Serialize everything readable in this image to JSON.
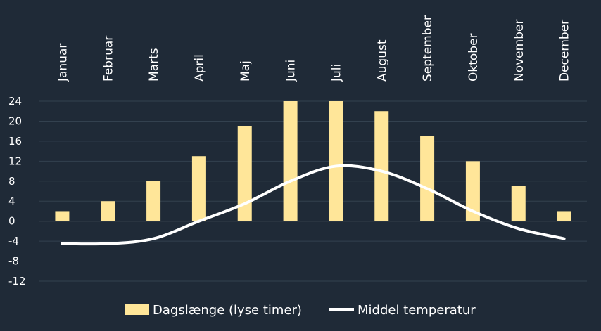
{
  "chart_data": {
    "type": "bar",
    "categories": [
      "Januar",
      "Februar",
      "Marts",
      "April",
      "Maj",
      "Juni",
      "Juli",
      "August",
      "September",
      "Oktober",
      "November",
      "December"
    ],
    "series": [
      {
        "name": "Dagslænge (lyse timer)",
        "kind": "bar",
        "color": "#ffe699",
        "values": [
          2,
          4,
          8,
          13,
          19,
          24,
          24,
          22,
          17,
          12,
          7,
          2
        ]
      },
      {
        "name": "Middel temperatur",
        "kind": "line",
        "color": "#ffffff",
        "values": [
          -4.5,
          -4.5,
          -3.5,
          0,
          3.5,
          8,
          11,
          10,
          6.5,
          2,
          -1.5,
          -3.5
        ]
      }
    ],
    "yticks": [
      "24",
      "20",
      "16",
      "12",
      "8",
      "4",
      "0",
      "-4",
      "-8",
      "-12"
    ],
    "ylim": [
      -12,
      24
    ],
    "grid": true,
    "legend_position": "bottom"
  }
}
